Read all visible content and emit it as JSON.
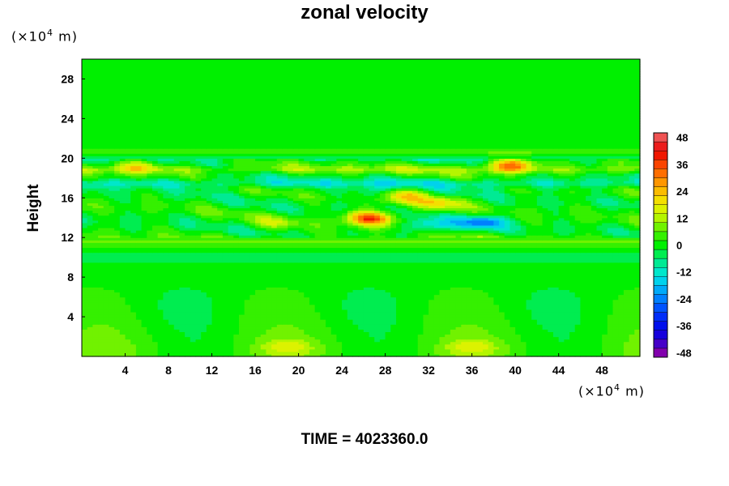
{
  "chart_data": {
    "type": "heatmap",
    "title": "zonal velocity",
    "ylabel": "Height",
    "y_unit": {
      "prefix": "(×10",
      "exp": "4",
      "suffix": " m)"
    },
    "x_unit": {
      "prefix": "(×10",
      "exp": "4",
      "suffix": " m)"
    },
    "xlim": [
      0,
      51.5
    ],
    "ylim": [
      0,
      30
    ],
    "x_ticks": [
      4,
      8,
      12,
      16,
      20,
      24,
      28,
      32,
      36,
      40,
      44,
      48
    ],
    "y_ticks": [
      4,
      8,
      12,
      16,
      20,
      24,
      28
    ],
    "colorbar": {
      "range": [
        -50,
        50
      ],
      "ticks": [
        48,
        36,
        24,
        12,
        0,
        -12,
        -24,
        -36,
        -48
      ],
      "level_step": 4
    },
    "features": [
      {
        "x": 5,
        "y": 19.2,
        "v": 14
      },
      {
        "x": 26.5,
        "y": 14.0,
        "v": 36
      },
      {
        "x": 29.5,
        "y": 16.2,
        "v": 20
      },
      {
        "x": 33,
        "y": 15.5,
        "v": 16
      },
      {
        "x": 39.5,
        "y": 19.3,
        "v": 30
      },
      {
        "x": 32,
        "y": 13.2,
        "v": -16
      },
      {
        "x": 37,
        "y": 13.6,
        "v": -22
      },
      {
        "x": 27,
        "y": 16.5,
        "v": -10
      },
      {
        "x": 18,
        "y": 13.5,
        "v": 9
      },
      {
        "x": 19,
        "y": 1,
        "v": 9
      },
      {
        "x": 36,
        "y": 1,
        "v": 9
      }
    ]
  },
  "footer": {
    "time_label": "TIME = 4023360.0"
  }
}
